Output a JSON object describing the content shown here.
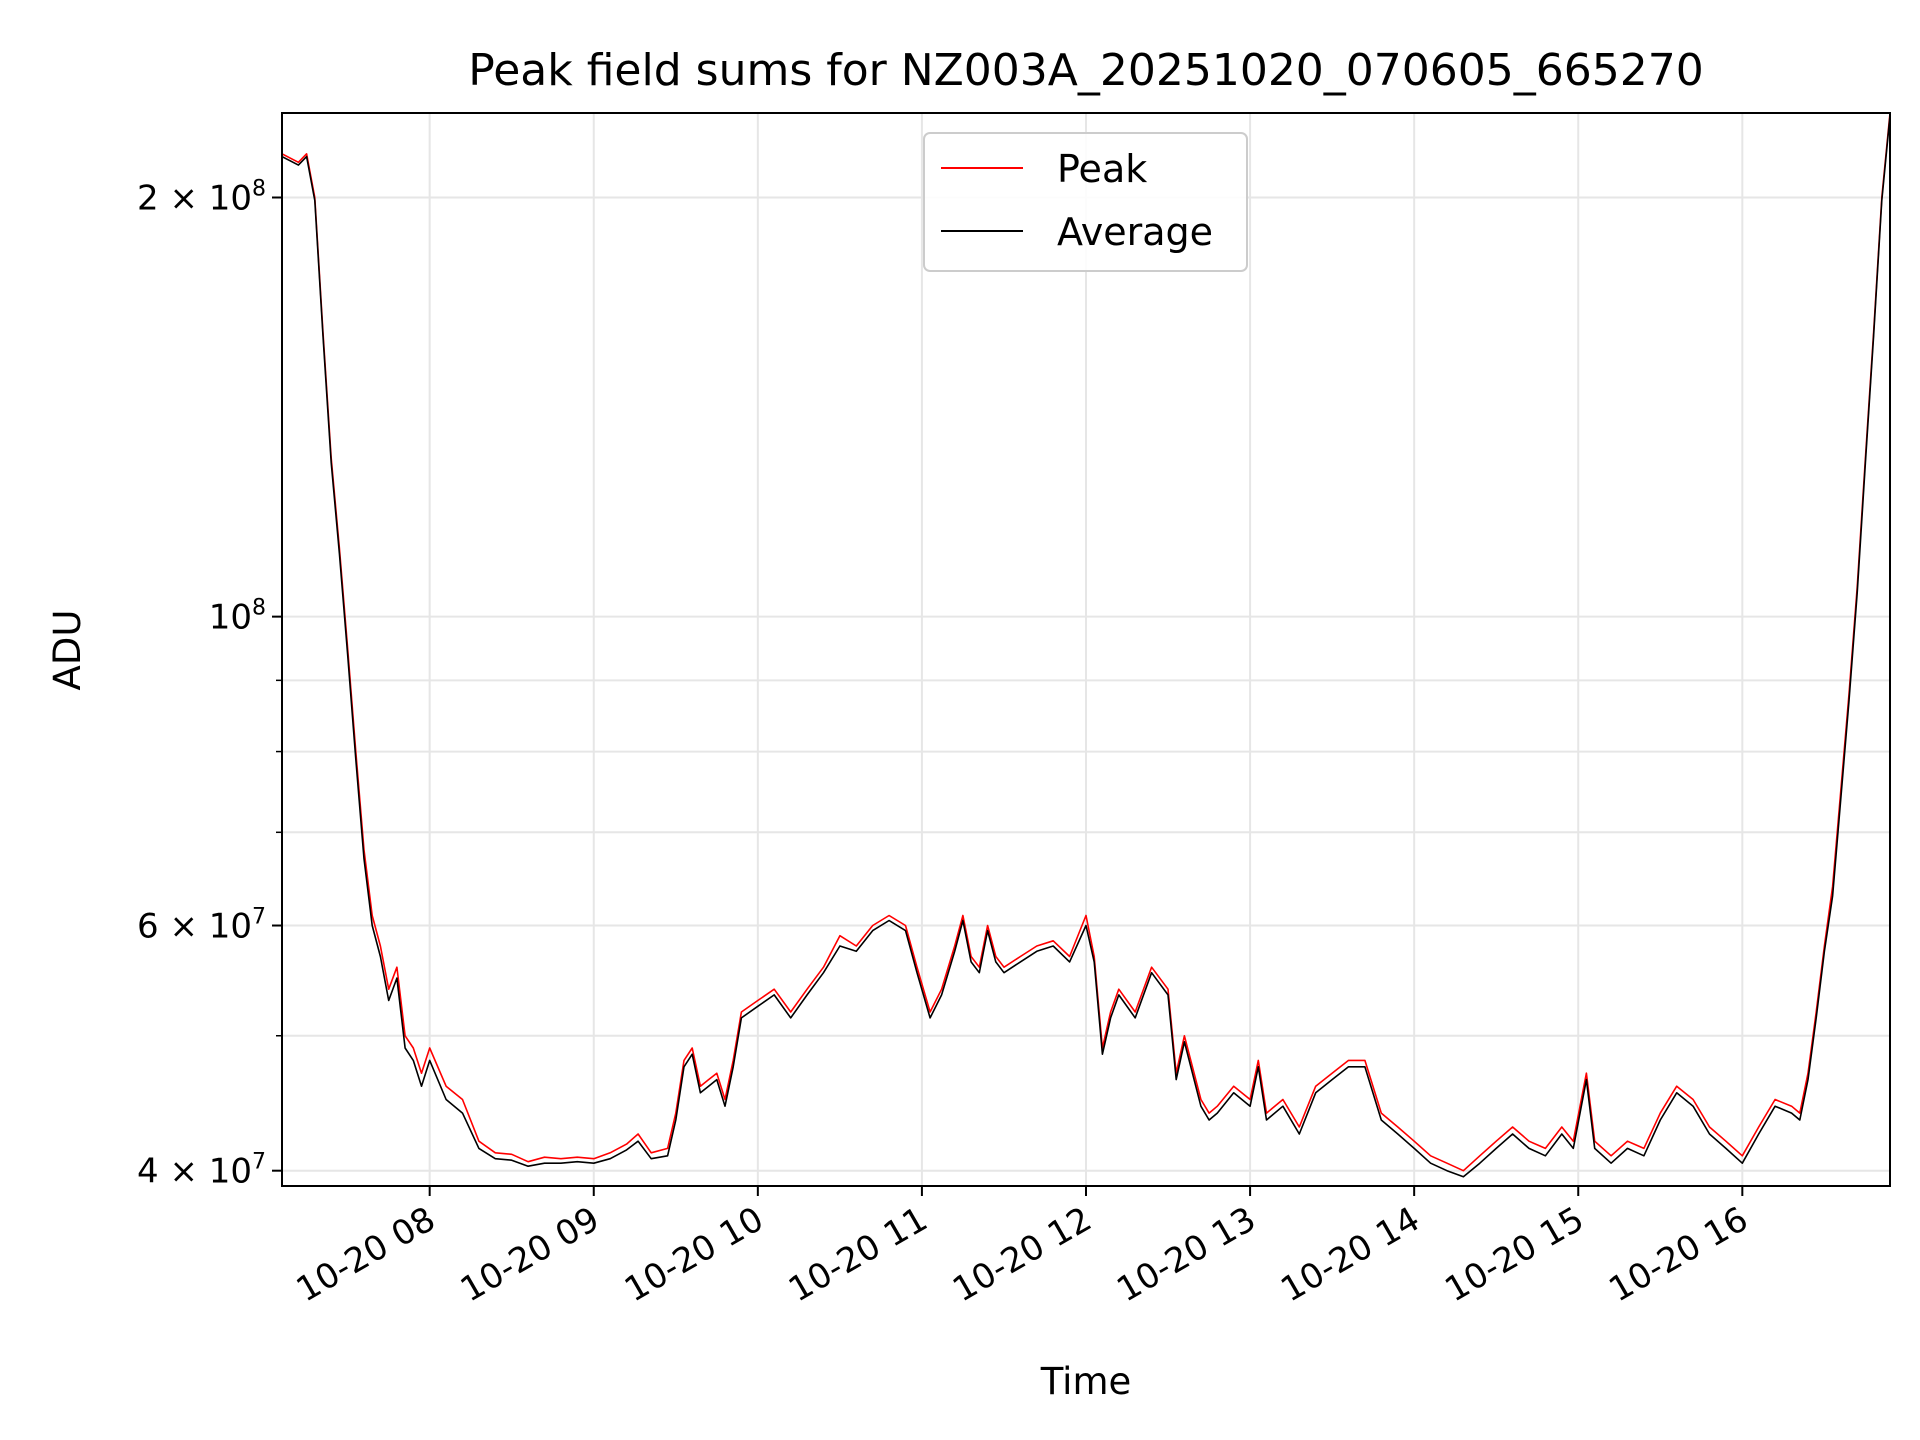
{
  "chart_data": {
    "type": "line",
    "title": "Peak field sums for NZ003A_20251020_070605_665270",
    "xlabel": "Time",
    "ylabel": "ADU",
    "yscale": "log",
    "ylim": [
      39000000,
      230000000
    ],
    "xlim_hours": [
      7.1,
      16.9
    ],
    "grid": true,
    "legend_position": "upper center",
    "x_tick_hours": [
      8,
      9,
      10,
      11,
      12,
      13,
      14,
      15,
      16
    ],
    "x_tick_labels": [
      "10-20 08",
      "10-20 09",
      "10-20 10",
      "10-20 11",
      "10-20 12",
      "10-20 13",
      "10-20 14",
      "10-20 15",
      "10-20 16"
    ],
    "y_ticks": [
      {
        "value": 200000000,
        "mant": "2",
        "exp": "8"
      },
      {
        "value": 100000000,
        "mant": "",
        "exp": "8"
      },
      {
        "value": 60000000,
        "mant": "6",
        "exp": "7"
      },
      {
        "value": 40000000,
        "mant": "4",
        "exp": "7"
      }
    ],
    "y_minor_ticks": [
      50000000,
      70000000,
      80000000,
      90000000
    ],
    "series": [
      {
        "name": "Peak",
        "color": "#ff0000",
        "x_hours": [
          7.1,
          7.2,
          7.25,
          7.3,
          7.35,
          7.4,
          7.45,
          7.5,
          7.55,
          7.6,
          7.65,
          7.7,
          7.75,
          7.8,
          7.85,
          7.9,
          7.95,
          8.0,
          8.1,
          8.2,
          8.3,
          8.4,
          8.5,
          8.6,
          8.7,
          8.8,
          8.9,
          9.0,
          9.1,
          9.2,
          9.27,
          9.35,
          9.45,
          9.5,
          9.55,
          9.6,
          9.65,
          9.7,
          9.75,
          9.8,
          9.85,
          9.9,
          10.0,
          10.1,
          10.2,
          10.3,
          10.4,
          10.5,
          10.6,
          10.7,
          10.8,
          10.9,
          10.97,
          11.05,
          11.12,
          11.2,
          11.25,
          11.3,
          11.35,
          11.4,
          11.45,
          11.5,
          11.6,
          11.7,
          11.8,
          11.9,
          12.0,
          12.05,
          12.1,
          12.15,
          12.2,
          12.3,
          12.4,
          12.5,
          12.55,
          12.6,
          12.7,
          12.75,
          12.8,
          12.9,
          13.0,
          13.05,
          13.1,
          13.2,
          13.3,
          13.4,
          13.5,
          13.6,
          13.7,
          13.8,
          13.9,
          14.0,
          14.1,
          14.2,
          14.3,
          14.4,
          14.5,
          14.6,
          14.7,
          14.8,
          14.9,
          14.97,
          15.05,
          15.1,
          15.2,
          15.3,
          15.4,
          15.5,
          15.6,
          15.7,
          15.8,
          15.9,
          16.0,
          16.1,
          16.2,
          16.3,
          16.35,
          16.4,
          16.45,
          16.5,
          16.55,
          16.6,
          16.65,
          16.7,
          16.75,
          16.8,
          16.85,
          16.9
        ],
        "values": [
          215000000,
          212000000,
          215000000,
          200000000,
          160000000,
          130000000,
          112000000,
          95000000,
          80000000,
          68000000,
          61000000,
          58000000,
          54000000,
          56000000,
          50000000,
          49000000,
          47000000,
          49000000,
          46000000,
          45000000,
          42000000,
          41200000,
          41100000,
          40600000,
          40900000,
          40800000,
          40900000,
          40800000,
          41200000,
          41800000,
          42500000,
          41200000,
          41500000,
          44000000,
          48000000,
          49000000,
          46000000,
          46500000,
          47000000,
          45000000,
          48000000,
          52000000,
          53000000,
          54000000,
          52000000,
          54000000,
          56000000,
          59000000,
          58000000,
          60000000,
          61000000,
          60000000,
          56000000,
          52000000,
          54000000,
          58000000,
          61000000,
          57000000,
          56000000,
          60000000,
          57000000,
          56000000,
          57000000,
          58000000,
          58500000,
          57000000,
          61000000,
          57000000,
          49000000,
          52000000,
          54000000,
          52000000,
          56000000,
          54000000,
          47000000,
          50000000,
          45000000,
          44000000,
          44500000,
          46000000,
          45000000,
          48000000,
          44000000,
          45000000,
          43000000,
          46000000,
          47000000,
          48000000,
          48000000,
          44000000,
          43000000,
          42000000,
          41000000,
          40500000,
          40000000,
          41000000,
          42000000,
          43000000,
          42000000,
          41500000,
          43000000,
          42000000,
          47000000,
          42000000,
          41000000,
          42000000,
          41500000,
          44000000,
          46000000,
          45000000,
          43000000,
          42000000,
          41000000,
          43000000,
          45000000,
          44500000,
          44000000,
          47000000,
          52000000,
          58000000,
          64000000,
          75000000,
          88000000,
          105000000,
          130000000,
          160000000,
          200000000,
          230000000
        ]
      },
      {
        "name": "Average",
        "color": "#000000",
        "x_hours": [
          7.1,
          7.2,
          7.25,
          7.3,
          7.35,
          7.4,
          7.45,
          7.5,
          7.55,
          7.6,
          7.65,
          7.7,
          7.75,
          7.8,
          7.85,
          7.9,
          7.95,
          8.0,
          8.1,
          8.2,
          8.3,
          8.4,
          8.5,
          8.6,
          8.7,
          8.8,
          8.9,
          9.0,
          9.1,
          9.2,
          9.27,
          9.35,
          9.45,
          9.5,
          9.55,
          9.6,
          9.65,
          9.7,
          9.75,
          9.8,
          9.85,
          9.9,
          10.0,
          10.1,
          10.2,
          10.3,
          10.4,
          10.5,
          10.6,
          10.7,
          10.8,
          10.9,
          10.97,
          11.05,
          11.12,
          11.2,
          11.25,
          11.3,
          11.35,
          11.4,
          11.45,
          11.5,
          11.6,
          11.7,
          11.8,
          11.9,
          12.0,
          12.05,
          12.1,
          12.15,
          12.2,
          12.3,
          12.4,
          12.5,
          12.55,
          12.6,
          12.7,
          12.75,
          12.8,
          12.9,
          13.0,
          13.05,
          13.1,
          13.2,
          13.3,
          13.4,
          13.5,
          13.6,
          13.7,
          13.8,
          13.9,
          14.0,
          14.1,
          14.2,
          14.3,
          14.4,
          14.5,
          14.6,
          14.7,
          14.8,
          14.9,
          14.97,
          15.05,
          15.1,
          15.2,
          15.3,
          15.4,
          15.5,
          15.6,
          15.7,
          15.8,
          15.9,
          16.0,
          16.1,
          16.2,
          16.3,
          16.35,
          16.4,
          16.45,
          16.5,
          16.55,
          16.6,
          16.65,
          16.7,
          16.75,
          16.8,
          16.85,
          16.9
        ],
        "values": [
          214000000,
          211000000,
          214000000,
          199000000,
          159000000,
          129000000,
          111000000,
          94000000,
          79000000,
          67000000,
          60000000,
          57000000,
          53000000,
          55000000,
          49000000,
          48000000,
          46000000,
          48000000,
          45000000,
          44000000,
          41500000,
          40800000,
          40700000,
          40300000,
          40500000,
          40500000,
          40600000,
          40500000,
          40800000,
          41400000,
          42000000,
          40800000,
          41000000,
          43500000,
          47500000,
          48500000,
          45500000,
          46000000,
          46500000,
          44500000,
          47500000,
          51500000,
          52500000,
          53500000,
          51500000,
          53500000,
          55500000,
          58000000,
          57500000,
          59500000,
          60500000,
          59500000,
          55500000,
          51500000,
          53500000,
          57500000,
          60500000,
          56500000,
          55500000,
          59500000,
          56500000,
          55500000,
          56500000,
          57500000,
          58000000,
          56500000,
          60000000,
          56500000,
          48500000,
          51500000,
          53500000,
          51500000,
          55500000,
          53500000,
          46500000,
          49500000,
          44500000,
          43500000,
          44000000,
          45500000,
          44500000,
          47500000,
          43500000,
          44500000,
          42500000,
          45500000,
          46500000,
          47500000,
          47500000,
          43500000,
          42500000,
          41500000,
          40500000,
          40000000,
          39600000,
          40500000,
          41500000,
          42500000,
          41500000,
          41000000,
          42500000,
          41500000,
          46500000,
          41500000,
          40500000,
          41500000,
          41000000,
          43500000,
          45500000,
          44500000,
          42500000,
          41500000,
          40500000,
          42500000,
          44500000,
          44000000,
          43500000,
          46500000,
          51500000,
          57500000,
          63000000,
          74000000,
          87000000,
          104000000,
          129000000,
          159000000,
          199000000,
          229000000
        ]
      }
    ]
  }
}
